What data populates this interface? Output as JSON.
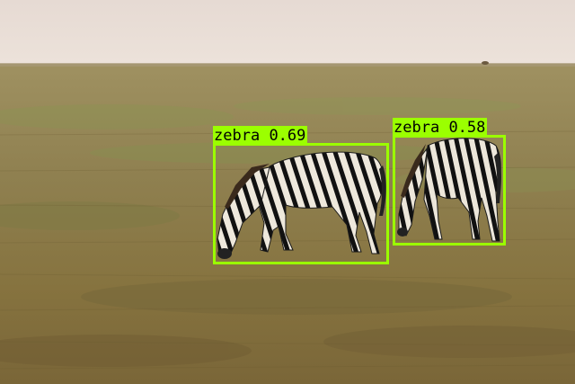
{
  "detections": [
    {
      "class_label": "zebra",
      "score": "0.69",
      "color": "#9bff00"
    },
    {
      "class_label": "zebra",
      "score": "0.58",
      "color": "#9bff00"
    }
  ],
  "scene_colors": {
    "sky": "#e8ddd6",
    "grass_far": "#9e8f5c",
    "grass_mid": "#8f7f4e",
    "grass_near": "#7e6a3d"
  }
}
